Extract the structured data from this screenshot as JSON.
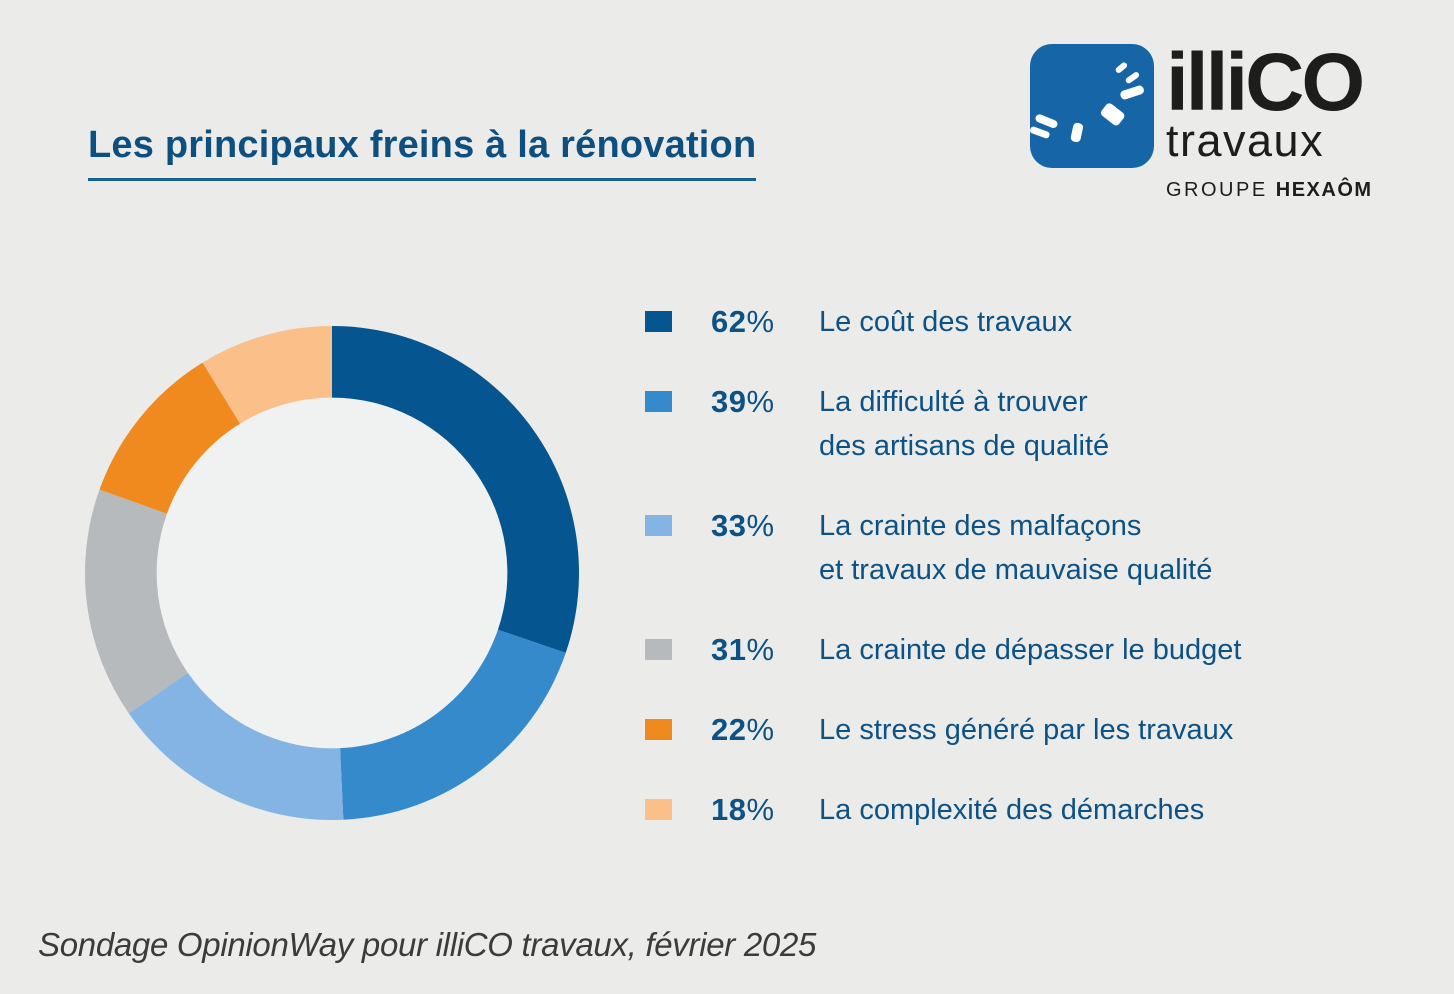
{
  "page": {
    "background": "#EBEBEA"
  },
  "header": {
    "title": "Les principaux freins à la rénovation",
    "title_color": "#0D5080"
  },
  "logo": {
    "brand_name": "illiCO",
    "brand_sub": "travaux",
    "group_prefix": "GROUPE",
    "group_name": "HEXAÔM",
    "mark_color": "#1565A7"
  },
  "chart_data": {
    "type": "pie",
    "donut": true,
    "title": "Les principaux freins à la rénovation",
    "categories": [
      "Le coût des travaux",
      "La difficulté à trouver des artisans de qualité",
      "La crainte des malfaçons et travaux de mauvaise qualité",
      "La crainte de dépasser le budget",
      "Le stress généré par les travaux",
      "La complexité des démarches"
    ],
    "values": [
      62,
      39,
      33,
      31,
      22,
      18
    ],
    "unit": "%",
    "colors": [
      "#055690",
      "#348ACA",
      "#84B4E3",
      "#B6BABC",
      "#F0891E",
      "#FBC089"
    ],
    "start_angle_deg": 0,
    "direction": "clockwise",
    "hole_ratio": 0.71,
    "hole_color": "#F0F1F1",
    "legend_position": "right"
  },
  "legend": {
    "items": [
      {
        "value": "62",
        "unit": "%",
        "color": "#055690",
        "lines": [
          "Le coût des travaux"
        ]
      },
      {
        "value": "39",
        "unit": "%",
        "color": "#348ACA",
        "lines": [
          "La difficulté à trouver",
          "des artisans de qualité"
        ]
      },
      {
        "value": "33",
        "unit": "%",
        "color": "#84B4E3",
        "lines": [
          "La crainte des malfaçons",
          "et travaux de mauvaise qualité"
        ]
      },
      {
        "value": "31",
        "unit": "%",
        "color": "#B6BABC",
        "lines": [
          "La crainte de dépasser le budget"
        ]
      },
      {
        "value": "22",
        "unit": "%",
        "color": "#F0891E",
        "lines": [
          "Le stress généré par les travaux"
        ]
      },
      {
        "value": "18",
        "unit": "%",
        "color": "#FBC089",
        "lines": [
          "La complexité des démarches"
        ]
      }
    ]
  },
  "footer": {
    "source": "Sondage OpinionWay pour illiCO travaux, février 2025"
  }
}
